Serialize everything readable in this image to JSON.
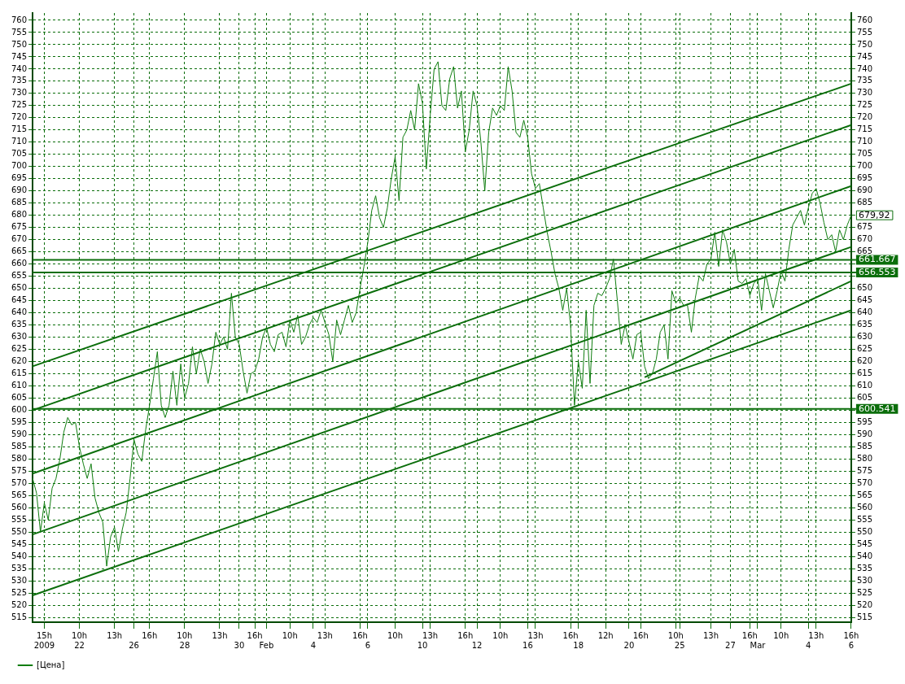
{
  "chart_data": {
    "type": "line",
    "legend": "bottom left",
    "grid": true,
    "line_style": "solid",
    "marker": "none",
    "categories": [
      null,
      null,
      null,
      "15h\n2009",
      null,
      null,
      null,
      null,
      null,
      null,
      null,
      null,
      "10h\n22",
      null,
      null,
      null,
      null,
      null,
      null,
      null,
      null,
      "13h",
      null,
      null,
      null,
      null,
      "\n26",
      null,
      null,
      null,
      "16h",
      null,
      null,
      null,
      null,
      null,
      null,
      null,
      null,
      "10h\n28",
      null,
      null,
      null,
      null,
      null,
      null,
      null,
      null,
      "13h",
      null,
      null,
      null,
      null,
      "\n30",
      null,
      null,
      null,
      "16h",
      null,
      null,
      "\nFeb",
      null,
      null,
      null,
      null,
      null,
      "10h",
      null,
      null,
      null,
      null,
      null,
      "\n4",
      null,
      null,
      "13h",
      null,
      null,
      null,
      null,
      null,
      null,
      null,
      null,
      "16h",
      null,
      "\n6",
      null,
      null,
      null,
      null,
      null,
      null,
      "10h",
      null,
      null,
      null,
      null,
      null,
      null,
      "\n10",
      null,
      "13h",
      null,
      null,
      null,
      null,
      null,
      null,
      null,
      null,
      "16h",
      null,
      null,
      "\n12",
      null,
      null,
      null,
      null,
      null,
      "10h",
      null,
      null,
      null,
      null,
      null,
      null,
      "\n16",
      null,
      "13h",
      null,
      null,
      null,
      null,
      null,
      null,
      null,
      null,
      "16h",
      null,
      "\n18",
      null,
      null,
      null,
      null,
      null,
      null,
      "12h",
      null,
      null,
      null,
      null,
      null,
      "\n20",
      null,
      null,
      "16h",
      null,
      null,
      null,
      null,
      null,
      null,
      null,
      null,
      "10h",
      "\n25",
      null,
      null,
      null,
      null,
      null,
      null,
      null,
      "13h",
      null,
      null,
      null,
      null,
      "\n27",
      null,
      null,
      null,
      null,
      "16h",
      null,
      "\nMar",
      null,
      null,
      null,
      null,
      null,
      "10h",
      null,
      null,
      null,
      null,
      null,
      null,
      "\n4",
      null,
      "13h",
      null,
      null,
      null,
      null,
      null,
      null,
      null,
      null,
      "16h\n6"
    ],
    "ylim": [
      513,
      763
    ],
    "yticks": [
      515,
      520,
      525,
      530,
      535,
      540,
      545,
      550,
      555,
      560,
      565,
      570,
      575,
      580,
      585,
      590,
      595,
      600,
      605,
      610,
      615,
      620,
      625,
      630,
      635,
      640,
      645,
      650,
      655,
      660,
      665,
      670,
      675,
      680,
      685,
      690,
      695,
      700,
      705,
      710,
      715,
      720,
      725,
      730,
      735,
      740,
      745,
      750,
      755,
      760
    ],
    "y2lim": [
      513,
      763
    ],
    "y2ticks": [
      515,
      520,
      525,
      530,
      535,
      540,
      545,
      550,
      555,
      560,
      565,
      570,
      575,
      580,
      585,
      590,
      595,
      {
        "value": 600,
        "label": null
      },
      605,
      610,
      615,
      620,
      625,
      630,
      635,
      640,
      645,
      650,
      {
        "value": 655,
        "label": null
      },
      {
        "value": 660,
        "label": null
      },
      665,
      670,
      675,
      {
        "value": 680,
        "label": null
      },
      685,
      690,
      695,
      700,
      705,
      710,
      715,
      720,
      725,
      730,
      735,
      740,
      745,
      750,
      755,
      760
    ],
    "ref_lines": [
      {
        "axis": "y",
        "value": 661.667,
        "label": "661.667",
        "color": "#0b6e0b"
      },
      {
        "axis": "y",
        "value": 656.553,
        "label": "656.553",
        "color": "#0b6e0b"
      },
      {
        "axis": "y",
        "value": 600.541,
        "label": "600.541",
        "color": "#0b6e0b"
      }
    ],
    "annotations": [
      "679,92"
    ],
    "series": [
      {
        "name": "[Цена]",
        "color": "#0f7d0f",
        "values": [
          572,
          566,
          550,
          562,
          555,
          568,
          572,
          580,
          591,
          597,
          594,
          595,
          585,
          578,
          572,
          578,
          564,
          558,
          554,
          536,
          548,
          552,
          542,
          551,
          558,
          572,
          588,
          582,
          579,
          592,
          602,
          613,
          624,
          602,
          597,
          602,
          616,
          602,
          619,
          605,
          611,
          626,
          615,
          625,
          620,
          611,
          619,
          632,
          627,
          630,
          625,
          648,
          630,
          627,
          616,
          607,
          615,
          616,
          621,
          630,
          634,
          627,
          624,
          631,
          632,
          626,
          637,
          632,
          639,
          627,
          630,
          635,
          638,
          636,
          641,
          636,
          631,
          620,
          637,
          631,
          637,
          643,
          636,
          640,
          650,
          659,
          669,
          682,
          688,
          679,
          675,
          683,
          695,
          704,
          686,
          712,
          715,
          723,
          715,
          734,
          726,
          699,
          721,
          740,
          743,
          725,
          723,
          736,
          741,
          724,
          731,
          706,
          715,
          731,
          725,
          710,
          690,
          714,
          724,
          721,
          725,
          723,
          741,
          731,
          714,
          712,
          719,
          712,
          697,
          691,
          693,
          683,
          673,
          665,
          656,
          650,
          641,
          650,
          635,
          602,
          620,
          609,
          641,
          611,
          643,
          648,
          647,
          650,
          654,
          662,
          645,
          627,
          635,
          628,
          621,
          631,
          632,
          618,
          613,
          615,
          621,
          632,
          635,
          621,
          649,
          644,
          646,
          643,
          643,
          632,
          646,
          655,
          653,
          660,
          662,
          673,
          659,
          674,
          669,
          660,
          666,
          653,
          652,
          654,
          647,
          652,
          654,
          641,
          656,
          649,
          642,
          649,
          657,
          653,
          666,
          676,
          679,
          682,
          676,
          683,
          689,
          691,
          685,
          677,
          670,
          672,
          665,
          674,
          670,
          676,
          680
        ]
      },
      {
        "color": "#0b6e0b",
        "values": [
          618,
          null,
          null,
          null,
          null,
          null,
          null,
          null,
          null,
          null,
          null,
          null,
          null,
          null,
          null,
          null,
          null,
          null,
          null,
          null,
          null,
          null,
          null,
          null,
          null,
          null,
          null,
          null,
          null,
          null,
          null,
          null,
          null,
          null,
          null,
          null,
          null,
          null,
          null,
          null,
          null,
          null,
          null,
          null,
          null,
          null,
          null,
          null,
          null,
          null,
          null,
          null,
          null,
          null,
          null,
          null,
          null,
          null,
          null,
          null,
          null,
          null,
          null,
          null,
          null,
          null,
          null,
          null,
          null,
          null,
          null,
          null,
          null,
          null,
          null,
          null,
          null,
          null,
          null,
          null,
          null,
          null,
          null,
          null,
          null,
          null,
          null,
          null,
          null,
          null,
          null,
          null,
          null,
          null,
          null,
          null,
          null,
          null,
          null,
          null,
          null,
          null,
          null,
          null,
          null,
          null,
          null,
          null,
          null,
          null,
          null,
          null,
          null,
          null,
          null,
          null,
          null,
          null,
          null,
          null,
          null,
          null,
          null,
          null,
          null,
          null,
          null,
          null,
          null,
          null,
          null,
          null,
          null,
          null,
          null,
          null,
          null,
          null,
          null,
          null,
          null,
          null,
          null,
          null,
          null,
          null,
          null,
          null,
          null,
          null,
          null,
          null,
          null,
          null,
          null,
          null,
          null,
          null,
          null,
          null,
          null,
          null,
          null,
          null,
          null,
          null,
          null,
          null,
          null,
          null,
          null,
          null,
          null,
          null,
          null,
          null,
          null,
          null,
          null,
          null,
          null,
          null,
          null,
          null,
          null,
          null,
          null,
          null,
          null,
          null,
          null,
          null,
          null,
          null,
          null,
          null,
          null,
          null,
          null,
          null,
          null,
          null,
          null,
          null,
          null,
          null,
          null,
          null,
          null,
          null,
          734
        ]
      },
      {
        "color": "#0b6e0b",
        "values": [
          600,
          null,
          null,
          null,
          null,
          null,
          null,
          null,
          null,
          null,
          null,
          null,
          null,
          null,
          null,
          null,
          null,
          null,
          null,
          null,
          null,
          null,
          null,
          null,
          null,
          null,
          null,
          null,
          null,
          null,
          null,
          null,
          null,
          null,
          null,
          null,
          null,
          null,
          null,
          null,
          null,
          null,
          null,
          null,
          null,
          null,
          null,
          null,
          null,
          null,
          null,
          null,
          null,
          null,
          null,
          null,
          null,
          null,
          null,
          null,
          null,
          null,
          null,
          null,
          null,
          null,
          null,
          null,
          null,
          null,
          null,
          null,
          null,
          null,
          null,
          null,
          null,
          null,
          null,
          null,
          null,
          null,
          null,
          null,
          null,
          null,
          null,
          null,
          null,
          null,
          null,
          null,
          null,
          null,
          null,
          null,
          null,
          null,
          null,
          null,
          null,
          null,
          null,
          null,
          null,
          null,
          null,
          null,
          null,
          null,
          null,
          null,
          null,
          null,
          null,
          null,
          null,
          null,
          null,
          null,
          null,
          null,
          null,
          null,
          null,
          null,
          null,
          null,
          null,
          null,
          null,
          null,
          null,
          null,
          null,
          null,
          null,
          null,
          null,
          null,
          null,
          null,
          null,
          null,
          null,
          null,
          null,
          null,
          null,
          null,
          null,
          null,
          null,
          null,
          null,
          null,
          null,
          null,
          null,
          null,
          null,
          null,
          null,
          null,
          null,
          null,
          null,
          null,
          null,
          null,
          null,
          null,
          null,
          null,
          null,
          null,
          null,
          null,
          null,
          null,
          null,
          null,
          null,
          null,
          null,
          null,
          null,
          null,
          null,
          null,
          null,
          null,
          null,
          null,
          null,
          null,
          null,
          null,
          null,
          null,
          null,
          null,
          null,
          null,
          null,
          null,
          null,
          null,
          null,
          null,
          717
        ]
      },
      {
        "color": "#0b6e0b",
        "values": [
          574,
          null,
          null,
          null,
          null,
          null,
          null,
          null,
          null,
          null,
          null,
          null,
          null,
          null,
          null,
          null,
          null,
          null,
          null,
          null,
          null,
          null,
          null,
          null,
          null,
          null,
          null,
          null,
          null,
          null,
          null,
          null,
          null,
          null,
          null,
          null,
          null,
          null,
          null,
          null,
          null,
          null,
          null,
          null,
          null,
          null,
          null,
          null,
          null,
          null,
          null,
          null,
          null,
          null,
          null,
          null,
          null,
          null,
          null,
          null,
          null,
          null,
          null,
          null,
          null,
          null,
          null,
          null,
          null,
          null,
          null,
          null,
          null,
          null,
          null,
          null,
          null,
          null,
          null,
          null,
          null,
          null,
          null,
          null,
          null,
          null,
          null,
          null,
          null,
          null,
          null,
          null,
          null,
          null,
          null,
          null,
          null,
          null,
          null,
          null,
          null,
          null,
          null,
          null,
          null,
          null,
          null,
          null,
          null,
          null,
          null,
          null,
          null,
          null,
          null,
          null,
          null,
          null,
          null,
          null,
          null,
          null,
          null,
          null,
          null,
          null,
          null,
          null,
          null,
          null,
          null,
          null,
          null,
          null,
          null,
          null,
          null,
          null,
          null,
          null,
          null,
          null,
          null,
          null,
          null,
          null,
          null,
          null,
          null,
          null,
          null,
          null,
          null,
          null,
          null,
          null,
          null,
          null,
          null,
          null,
          null,
          null,
          null,
          null,
          null,
          null,
          null,
          null,
          null,
          null,
          null,
          null,
          null,
          null,
          null,
          null,
          null,
          null,
          null,
          null,
          null,
          null,
          null,
          null,
          null,
          null,
          null,
          null,
          null,
          null,
          null,
          null,
          null,
          null,
          null,
          null,
          null,
          null,
          null,
          null,
          null,
          null,
          null,
          null,
          null,
          null,
          null,
          null,
          null,
          null,
          692
        ]
      },
      {
        "color": "#0b6e0b",
        "values": [
          549,
          null,
          null,
          null,
          null,
          null,
          null,
          null,
          null,
          null,
          null,
          null,
          null,
          null,
          null,
          null,
          null,
          null,
          null,
          null,
          null,
          null,
          null,
          null,
          null,
          null,
          null,
          null,
          null,
          null,
          null,
          null,
          null,
          null,
          null,
          null,
          null,
          null,
          null,
          null,
          null,
          null,
          null,
          null,
          null,
          null,
          null,
          null,
          null,
          null,
          null,
          null,
          null,
          null,
          null,
          null,
          null,
          null,
          null,
          null,
          null,
          null,
          null,
          null,
          null,
          null,
          null,
          null,
          null,
          null,
          null,
          null,
          null,
          null,
          null,
          null,
          null,
          null,
          null,
          null,
          null,
          null,
          null,
          null,
          null,
          null,
          null,
          null,
          null,
          null,
          null,
          null,
          null,
          null,
          null,
          null,
          null,
          null,
          null,
          null,
          null,
          null,
          null,
          null,
          null,
          null,
          null,
          null,
          null,
          null,
          null,
          null,
          null,
          null,
          null,
          null,
          null,
          null,
          null,
          null,
          null,
          null,
          null,
          null,
          null,
          null,
          null,
          null,
          null,
          null,
          null,
          null,
          null,
          null,
          null,
          null,
          null,
          null,
          null,
          null,
          null,
          null,
          null,
          null,
          null,
          null,
          null,
          null,
          null,
          null,
          null,
          null,
          null,
          null,
          null,
          null,
          null,
          null,
          null,
          null,
          null,
          null,
          null,
          null,
          null,
          null,
          null,
          null,
          null,
          null,
          null,
          null,
          null,
          null,
          null,
          null,
          null,
          null,
          null,
          null,
          null,
          null,
          null,
          null,
          null,
          null,
          null,
          null,
          null,
          null,
          null,
          null,
          null,
          null,
          null,
          null,
          null,
          null,
          null,
          null,
          null,
          null,
          null,
          null,
          null,
          null,
          null,
          null,
          null,
          null,
          667
        ]
      },
      {
        "color": "#0b6e0b",
        "values": [
          524,
          null,
          null,
          null,
          null,
          null,
          null,
          null,
          null,
          null,
          null,
          null,
          null,
          null,
          null,
          null,
          null,
          null,
          null,
          null,
          null,
          null,
          null,
          null,
          null,
          null,
          null,
          null,
          null,
          null,
          null,
          null,
          null,
          null,
          null,
          null,
          null,
          null,
          null,
          null,
          null,
          null,
          null,
          null,
          null,
          null,
          null,
          null,
          null,
          null,
          null,
          null,
          null,
          null,
          null,
          null,
          null,
          null,
          null,
          null,
          null,
          null,
          null,
          null,
          null,
          null,
          null,
          null,
          null,
          null,
          null,
          null,
          null,
          null,
          null,
          null,
          null,
          null,
          null,
          null,
          null,
          null,
          null,
          null,
          null,
          null,
          null,
          null,
          null,
          null,
          null,
          null,
          null,
          null,
          null,
          null,
          null,
          null,
          null,
          null,
          null,
          null,
          null,
          null,
          null,
          null,
          null,
          null,
          null,
          null,
          null,
          null,
          null,
          null,
          null,
          null,
          null,
          null,
          null,
          null,
          null,
          null,
          null,
          null,
          null,
          null,
          null,
          null,
          null,
          null,
          null,
          null,
          null,
          null,
          null,
          null,
          null,
          null,
          null,
          null,
          null,
          null,
          null,
          null,
          null,
          null,
          null,
          null,
          null,
          null,
          null,
          null,
          null,
          null,
          null,
          null,
          null,
          null,
          null,
          null,
          null,
          null,
          null,
          null,
          null,
          null,
          null,
          null,
          null,
          null,
          null,
          null,
          null,
          null,
          null,
          null,
          null,
          null,
          null,
          null,
          null,
          null,
          null,
          null,
          null,
          null,
          null,
          null,
          null,
          null,
          null,
          null,
          null,
          null,
          null,
          null,
          null,
          null,
          null,
          null,
          null,
          null,
          null,
          null,
          null,
          null,
          null,
          null,
          null,
          null,
          641
        ]
      },
      {
        "color": "#0b6e0b",
        "values": [
          null,
          null,
          null,
          null,
          null,
          null,
          null,
          null,
          null,
          null,
          null,
          null,
          null,
          null,
          null,
          null,
          null,
          null,
          null,
          null,
          null,
          null,
          null,
          null,
          null,
          null,
          null,
          null,
          null,
          null,
          null,
          null,
          null,
          null,
          null,
          null,
          null,
          null,
          null,
          null,
          null,
          null,
          null,
          null,
          null,
          null,
          null,
          null,
          null,
          null,
          null,
          null,
          null,
          null,
          null,
          null,
          null,
          null,
          null,
          null,
          null,
          null,
          null,
          null,
          null,
          null,
          null,
          null,
          null,
          null,
          null,
          null,
          null,
          null,
          null,
          null,
          null,
          null,
          null,
          null,
          null,
          null,
          null,
          null,
          null,
          null,
          null,
          null,
          null,
          null,
          null,
          null,
          null,
          null,
          null,
          null,
          null,
          null,
          null,
          null,
          null,
          null,
          null,
          null,
          null,
          null,
          null,
          null,
          null,
          null,
          null,
          null,
          null,
          null,
          null,
          null,
          null,
          null,
          null,
          null,
          null,
          null,
          null,
          null,
          null,
          null,
          null,
          null,
          null,
          null,
          null,
          null,
          null,
          null,
          null,
          null,
          null,
          null,
          null,
          null,
          null,
          null,
          null,
          null,
          null,
          null,
          null,
          null,
          null,
          null,
          null,
          null,
          null,
          null,
          null,
          null,
          null,
          613.5,
          null,
          null,
          null,
          null,
          null,
          null,
          null,
          null,
          null,
          null,
          null,
          null,
          null,
          null,
          null,
          null,
          null,
          null,
          null,
          null,
          null,
          null,
          null,
          null,
          null,
          null,
          null,
          null,
          null,
          null,
          null,
          null,
          null,
          null,
          null,
          null,
          null,
          null,
          null,
          null,
          null,
          null,
          null,
          null,
          null,
          null,
          null,
          null,
          null,
          null,
          null,
          null,
          653
        ]
      }
    ]
  }
}
